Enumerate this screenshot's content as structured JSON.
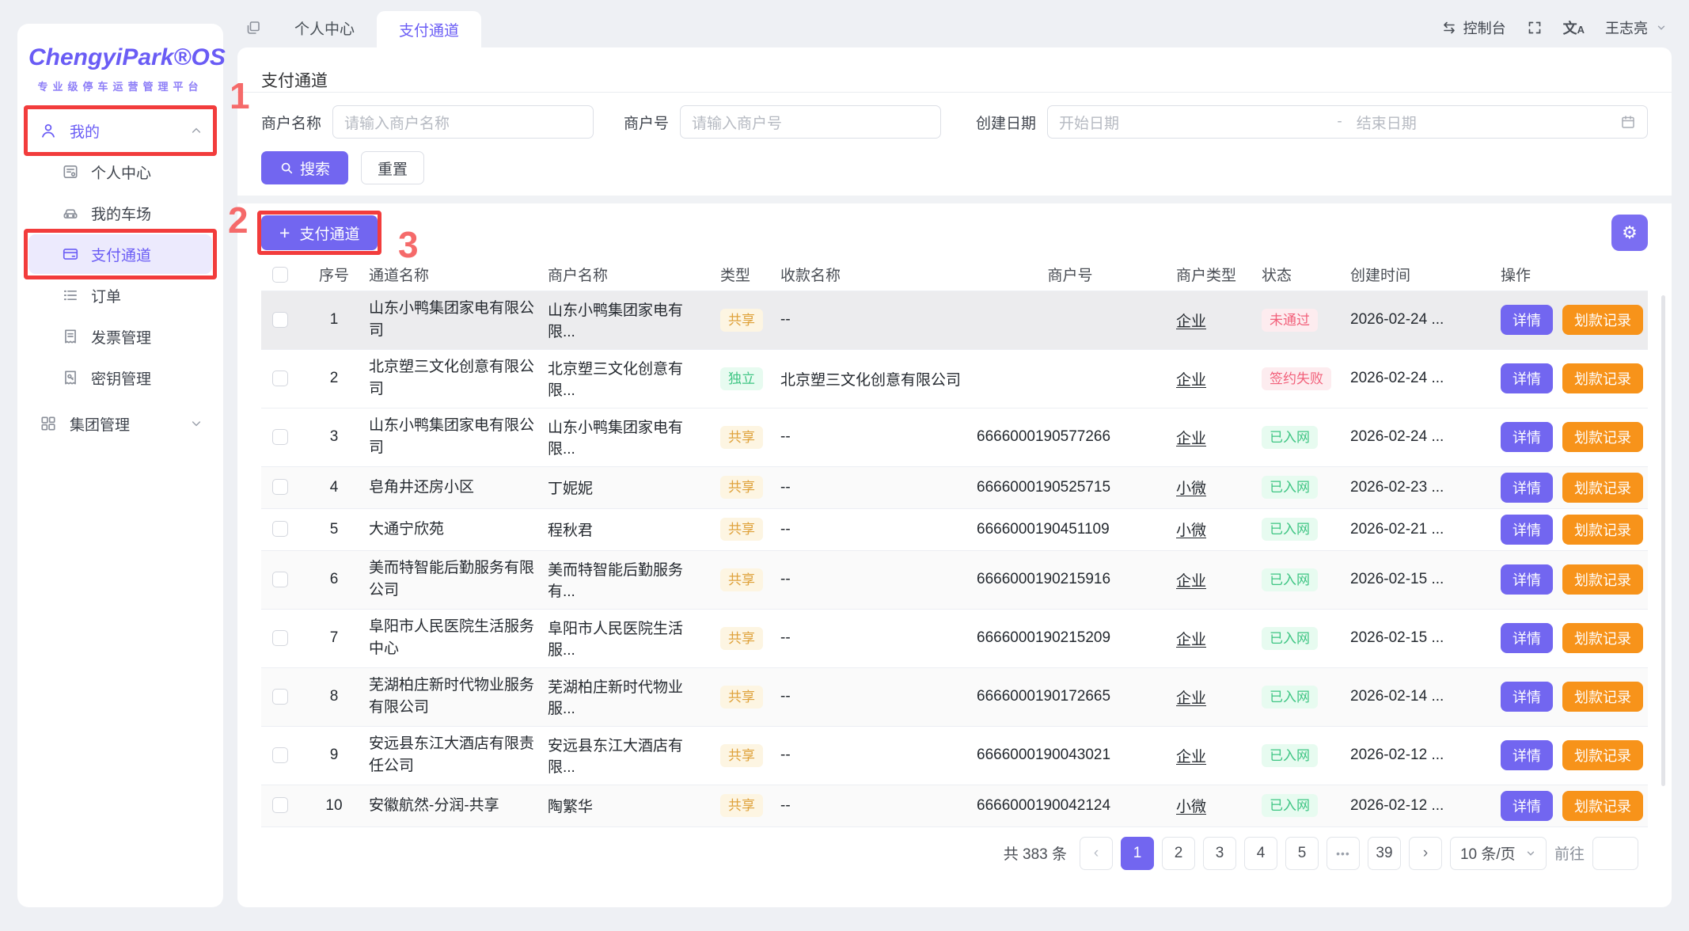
{
  "brand": {
    "name": "ChengyiPark®OS",
    "subtitle": "专业级停车运营管理平台"
  },
  "sidebar": {
    "group_mine": {
      "label": "我的",
      "icon": "user-icon",
      "expanded": true,
      "annotation": "1"
    },
    "items": [
      {
        "key": "personal-center",
        "label": "个人中心",
        "icon": "idcard-icon",
        "active": false
      },
      {
        "key": "my-parking",
        "label": "我的车场",
        "icon": "car-icon",
        "active": false
      },
      {
        "key": "payment-channel",
        "label": "支付通道",
        "icon": "bankcard-icon",
        "active": true,
        "annotation": "2"
      },
      {
        "key": "orders",
        "label": "订单",
        "icon": "list-icon",
        "active": false
      },
      {
        "key": "invoice-management",
        "label": "发票管理",
        "icon": "invoice-icon",
        "active": false
      },
      {
        "key": "key-management",
        "label": "密钥管理",
        "icon": "key-icon",
        "active": false
      }
    ],
    "group_group": {
      "label": "集团管理",
      "icon": "grid-icon",
      "expanded": false
    }
  },
  "topbar": {
    "tabs": [
      {
        "label": "个人中心",
        "active": false
      },
      {
        "label": "支付通道",
        "active": true
      }
    ],
    "console_label": "控制台",
    "username": "王志亮"
  },
  "page": {
    "title": "支付通道"
  },
  "filters": {
    "merchant_name_label": "商户名称",
    "merchant_name_placeholder": "请输入商户名称",
    "merchant_no_label": "商户号",
    "merchant_no_placeholder": "请输入商户号",
    "date_label": "创建日期",
    "date_start_placeholder": "开始日期",
    "date_separator": "-",
    "date_end_placeholder": "结束日期",
    "search_label": "搜索",
    "reset_label": "重置"
  },
  "toolbar": {
    "add_label": "支付通道",
    "add_plus": "+",
    "gear_glyph": "⚙"
  },
  "annotations": {
    "step1": "1",
    "step2": "2",
    "step3": "3"
  },
  "table": {
    "headers": [
      "序号",
      "通道名称",
      "商户名称",
      "类型",
      "收款名称",
      "商户号",
      "商户类型",
      "状态",
      "创建时间",
      "操作"
    ],
    "action_detail": "详情",
    "action_record": "划款记录",
    "rows": [
      {
        "index": "1",
        "channel": "山东小鸭集团家电有限公司",
        "merchant": "山东小鸭集团家电有限...",
        "type": "共享",
        "type_variant": "warning",
        "payee": "--",
        "merchant_no": "",
        "merchant_type": "企业",
        "status": "未通过",
        "status_variant": "danger",
        "created": "2026-02-24 ...",
        "tall": true,
        "hovered": true
      },
      {
        "index": "2",
        "channel": "北京塑三文化创意有限公司",
        "merchant": "北京塑三文化创意有限...",
        "type": "独立",
        "type_variant": "success",
        "payee": "北京塑三文化创意有限公司",
        "merchant_no": "",
        "merchant_type": "企业",
        "status": "签约失败",
        "status_variant": "danger",
        "created": "2026-02-24 ...",
        "tall": true
      },
      {
        "index": "3",
        "channel": "山东小鸭集团家电有限公司",
        "merchant": "山东小鸭集团家电有限...",
        "type": "共享",
        "type_variant": "warning",
        "payee": "--",
        "merchant_no": "6666000190577266",
        "merchant_type": "企业",
        "status": "已入网",
        "status_variant": "success",
        "created": "2026-02-24 ...",
        "tall": true
      },
      {
        "index": "4",
        "channel": "皂角井还房小区",
        "merchant": "丁妮妮",
        "type": "共享",
        "type_variant": "warning",
        "payee": "--",
        "merchant_no": "6666000190525715",
        "merchant_type": "小微",
        "status": "已入网",
        "status_variant": "success",
        "created": "2026-02-23 ...",
        "striped": true
      },
      {
        "index": "5",
        "channel": "大通宁欣苑",
        "merchant": "程秋君",
        "type": "共享",
        "type_variant": "warning",
        "payee": "--",
        "merchant_no": "6666000190451109",
        "merchant_type": "小微",
        "status": "已入网",
        "status_variant": "success",
        "created": "2026-02-21 ..."
      },
      {
        "index": "6",
        "channel": "美而特智能后勤服务有限公司",
        "merchant": "美而特智能后勤服务有...",
        "type": "共享",
        "type_variant": "warning",
        "payee": "--",
        "merchant_no": "6666000190215916",
        "merchant_type": "企业",
        "status": "已入网",
        "status_variant": "success",
        "created": "2026-02-15 ...",
        "tall": true,
        "striped": true
      },
      {
        "index": "7",
        "channel": "阜阳市人民医院生活服务中心",
        "merchant": "阜阳市人民医院生活服...",
        "type": "共享",
        "type_variant": "warning",
        "payee": "--",
        "merchant_no": "6666000190215209",
        "merchant_type": "企业",
        "status": "已入网",
        "status_variant": "success",
        "created": "2026-02-15 ...",
        "tall": true
      },
      {
        "index": "8",
        "channel": "芜湖柏庄新时代物业服务有限公司",
        "merchant": "芜湖柏庄新时代物业服...",
        "type": "共享",
        "type_variant": "warning",
        "payee": "--",
        "merchant_no": "6666000190172665",
        "merchant_type": "企业",
        "status": "已入网",
        "status_variant": "success",
        "created": "2026-02-14 ...",
        "tall": true,
        "striped": true
      },
      {
        "index": "9",
        "channel": "安远县东江大酒店有限责任公司",
        "merchant": "安远县东江大酒店有限...",
        "type": "共享",
        "type_variant": "warning",
        "payee": "--",
        "merchant_no": "6666000190043021",
        "merchant_type": "企业",
        "status": "已入网",
        "status_variant": "success",
        "created": "2026-02-12 ...",
        "tall": true
      },
      {
        "index": "10",
        "channel": "安徽航然-分润-共享",
        "merchant": "陶繁华",
        "type": "共享",
        "type_variant": "warning",
        "payee": "--",
        "merchant_no": "6666000190042124",
        "merchant_type": "小微",
        "status": "已入网",
        "status_variant": "success",
        "created": "2026-02-12 ...",
        "striped": true
      }
    ]
  },
  "pagination": {
    "total_label": "共 383 条",
    "pages": [
      {
        "label": "1",
        "active": true
      },
      {
        "label": "2"
      },
      {
        "label": "3"
      },
      {
        "label": "4"
      },
      {
        "label": "5"
      },
      {
        "label": "•••",
        "ellipsis": true
      },
      {
        "label": "39"
      }
    ],
    "prev_glyph": "‹",
    "next_glyph": "›",
    "page_size": "10 条/页",
    "goto_label": "前往"
  },
  "icons": {
    "gear": "⚙",
    "plus": "+",
    "ellipsis": "•••",
    "prev": "‹",
    "next": "›"
  },
  "colors": {
    "accent": "#7266f0",
    "accent_deep": "#6a5cf5",
    "orange": "#f7931a",
    "anno_red": "#f23c3c",
    "anno_num": "#f56a6a",
    "badge_warning_bg": "#fdf5e2",
    "badge_warning_text": "#dfa23c",
    "badge_success_bg": "#e7fbf0",
    "badge_success_text": "#3ec583",
    "badge_danger_bg": "#fdecef",
    "badge_danger_text": "#f2607a"
  }
}
